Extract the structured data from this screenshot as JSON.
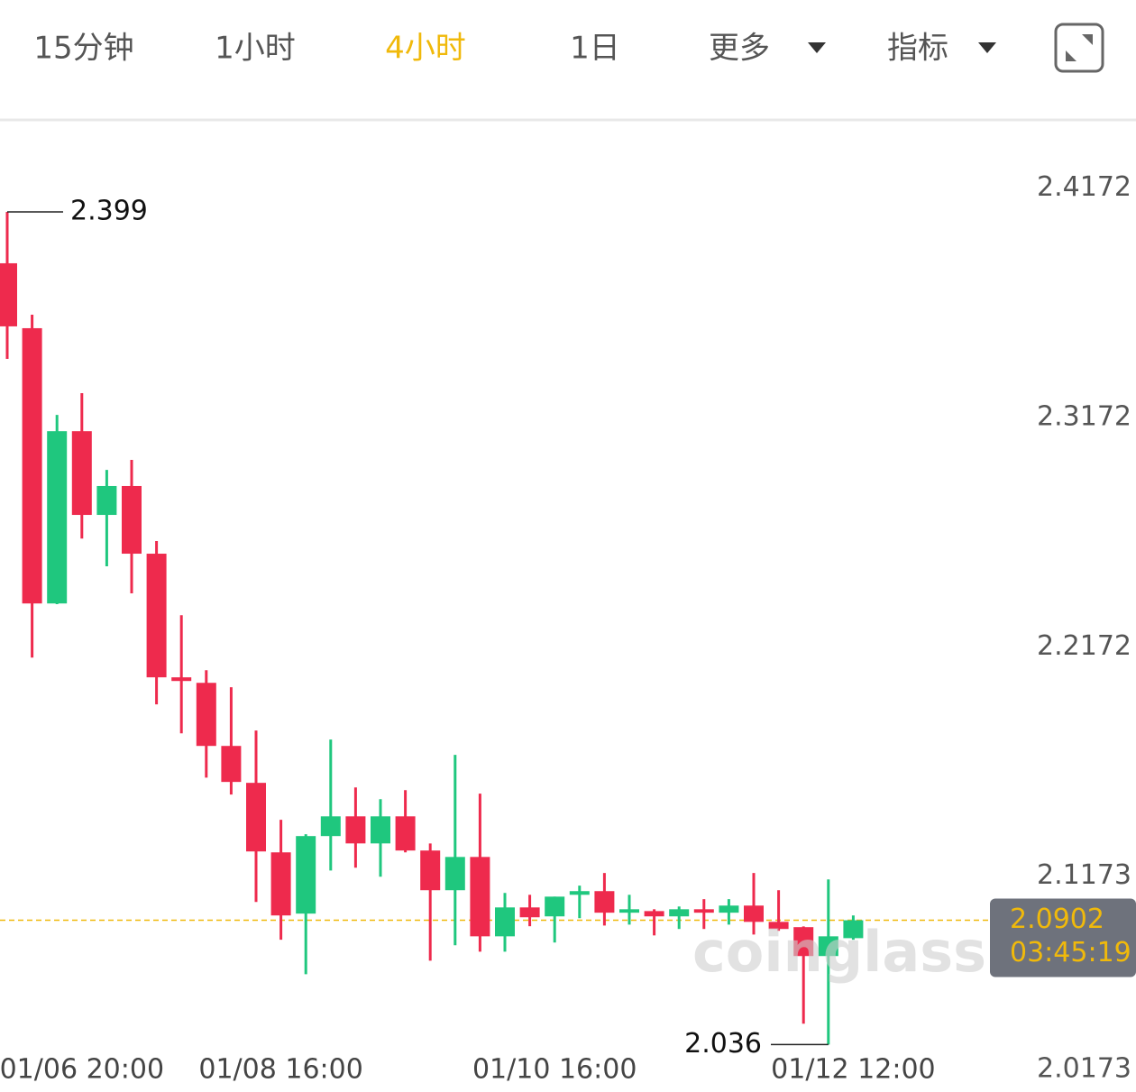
{
  "tabs": [
    "15分钟",
    "1小时",
    "4小时",
    "1日",
    "更多",
    "指标"
  ],
  "active_tab": 2,
  "chart_data": {
    "type": "candlestick",
    "categories": [
      null,
      null,
      null,
      "01/06 20:00",
      null,
      null,
      null,
      null,
      null,
      null,
      null,
      "01/08 16:00",
      null,
      null,
      null,
      null,
      null,
      null,
      null,
      null,
      null,
      null,
      "01/10 16:00",
      null,
      null,
      null,
      null,
      null,
      null,
      null,
      null,
      null,
      null,
      null,
      "01/12 12:00"
    ],
    "open": [
      2.3766,
      2.3483,
      2.2283,
      2.3034,
      2.2669,
      2.2795,
      2.25,
      2.1961,
      2.1937,
      2.1662,
      2.1501,
      2.1198,
      2.0931,
      2.1269,
      2.1355,
      2.1237,
      2.1355,
      2.1206,
      2.1033,
      2.1178,
      2.0832,
      2.0958,
      2.0919,
      2.1013,
      2.1029,
      2.0935,
      2.0942,
      2.0919,
      2.095,
      2.0935,
      2.0966,
      2.0895,
      2.0872,
      2.0746,
      2.0824
    ],
    "high": [
      2.399,
      2.3542,
      2.3105,
      2.32,
      2.2865,
      2.2909,
      2.2555,
      2.2232,
      2.1992,
      2.1918,
      2.1729,
      2.134,
      2.1277,
      2.169,
      2.1481,
      2.143,
      2.1469,
      2.1237,
      2.1623,
      2.1454,
      2.1021,
      2.1013,
      2.1005,
      2.1053,
      2.1108,
      2.1013,
      2.095,
      2.0962,
      2.0994,
      2.0994,
      2.1108,
      2.1033,
      2.0875,
      2.108,
      2.0923
    ],
    "low": [
      2.3349,
      2.2047,
      2.228,
      2.2566,
      2.2445,
      2.2327,
      2.1843,
      2.1717,
      2.1524,
      2.145,
      2.0982,
      2.0817,
      2.0667,
      2.1119,
      2.1131,
      2.1092,
      2.1198,
      2.0726,
      2.0793,
      2.0765,
      2.0765,
      2.0876,
      2.0805,
      2.0911,
      2.0879,
      2.0883,
      2.0836,
      2.0864,
      2.0864,
      2.0883,
      2.084,
      2.0856,
      2.0451,
      2.036,
      2.0817
    ],
    "close": [
      2.3491,
      2.2283,
      2.3034,
      2.2669,
      2.2795,
      2.25,
      2.1961,
      2.1945,
      2.1662,
      2.1505,
      2.1202,
      2.0923,
      2.1269,
      2.1355,
      2.1237,
      2.1355,
      2.1206,
      2.1033,
      2.1178,
      2.0832,
      2.0958,
      2.0915,
      2.1005,
      2.1029,
      2.0935,
      2.095,
      2.0919,
      2.095,
      2.0935,
      2.0966,
      2.0895,
      2.0864,
      2.0746,
      2.0832,
      2.0902
    ],
    "up_color": "#1fc77e",
    "down_color": "#ee2a4d",
    "ylim": [
      2.0173,
      2.4383
    ],
    "yticks": [
      2.4172,
      2.3172,
      2.2172,
      2.1173,
      2.0173
    ],
    "grid": false,
    "countdown": "03:45:19",
    "watermark": "coinglass.com"
  }
}
